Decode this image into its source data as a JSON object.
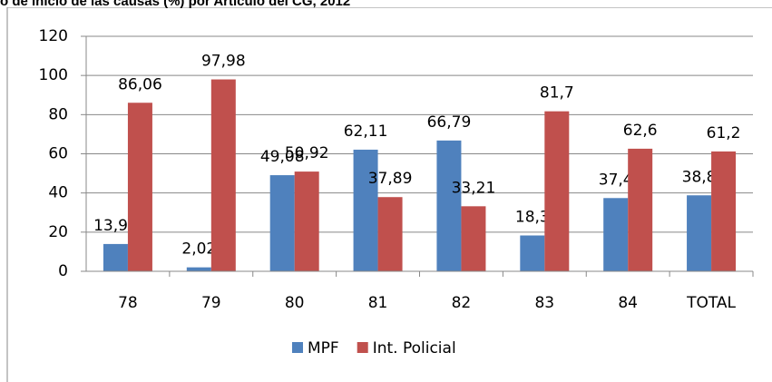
{
  "chart_data": {
    "type": "bar",
    "title": "o de inicio de las causas (%) por Artículo del CG, 2012",
    "categories": [
      "78",
      "79",
      "80",
      "81",
      "82",
      "83",
      "84",
      "TOTAL"
    ],
    "series": [
      {
        "name": "MPF",
        "color": "#4f81bd",
        "values": [
          13.94,
          2.02,
          49.08,
          62.11,
          66.79,
          18.3,
          37.4,
          38.8
        ],
        "value_labels": [
          "13,94",
          "2,02",
          "49,08",
          "62,11",
          "66,79",
          "18,3",
          "37,4",
          "38,8"
        ]
      },
      {
        "name": "Int. Policial",
        "color": "#c0504d",
        "values": [
          86.06,
          97.98,
          50.92,
          37.89,
          33.21,
          81.7,
          62.6,
          61.2
        ],
        "value_labels": [
          "86,06",
          "97,98",
          "50,92",
          "37,89",
          "33,21",
          "81,7",
          "62,6",
          "61,2"
        ]
      }
    ],
    "ylim": [
      0,
      120
    ],
    "yticks": [
      0,
      20,
      40,
      60,
      80,
      100,
      120
    ],
    "grid": true,
    "legend": "bottom"
  }
}
